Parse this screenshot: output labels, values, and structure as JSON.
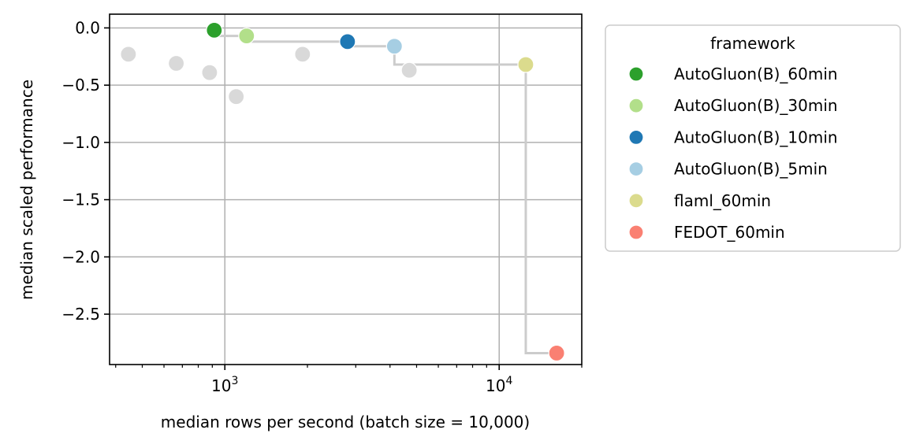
{
  "chart_data": {
    "type": "scatter",
    "xscale": "log",
    "xlabel": "median rows per second (batch size = 10,000)",
    "ylabel": "median scaled performance",
    "xlim": [
      380,
      20000
    ],
    "ylim": [
      -2.94,
      0.12
    ],
    "x_tick_labels": [
      {
        "value": 1000,
        "base": "10",
        "exp": "3"
      },
      {
        "value": 10000,
        "base": "10",
        "exp": "4"
      }
    ],
    "y_ticks": [
      0.0,
      -0.5,
      -1.0,
      -1.5,
      -2.0,
      -2.5
    ],
    "y_tick_labels": [
      "0.0",
      "−0.5",
      "−1.0",
      "−1.5",
      "−2.0",
      "−2.5"
    ],
    "grid": true,
    "legend": {
      "title": "framework",
      "placement": "outside-right"
    },
    "series": [
      {
        "name": "AutoGluon(B)_60min",
        "color": "#2ca02c",
        "points": [
          [
            915,
            -0.02
          ]
        ]
      },
      {
        "name": "AutoGluon(B)_30min",
        "color": "#b2df8a",
        "points": [
          [
            1200,
            -0.07
          ]
        ]
      },
      {
        "name": "AutoGluon(B)_10min",
        "color": "#1f78b4",
        "points": [
          [
            2800,
            -0.12
          ]
        ]
      },
      {
        "name": "AutoGluon(B)_5min",
        "color": "#a6cee3",
        "points": [
          [
            4150,
            -0.16
          ]
        ]
      },
      {
        "name": "flaml_60min",
        "color": "#dbdb8d",
        "points": [
          [
            12500,
            -0.32
          ]
        ]
      },
      {
        "name": "FEDOT_60min",
        "color": "#fa8072",
        "points": [
          [
            16200,
            -2.84
          ]
        ]
      }
    ],
    "other_points_color": "#d9d9d9",
    "other_points": [
      [
        445,
        -0.23
      ],
      [
        665,
        -0.31
      ],
      [
        880,
        -0.39
      ],
      [
        1100,
        -0.6
      ],
      [
        1920,
        -0.23
      ],
      [
        4700,
        -0.37
      ]
    ],
    "pareto_front": [
      [
        915,
        -0.02
      ],
      [
        1200,
        -0.07
      ],
      [
        2800,
        -0.12
      ],
      [
        4150,
        -0.16
      ],
      [
        12500,
        -0.32
      ],
      [
        16200,
        -2.84
      ]
    ],
    "pareto_color": "#cccccc"
  }
}
